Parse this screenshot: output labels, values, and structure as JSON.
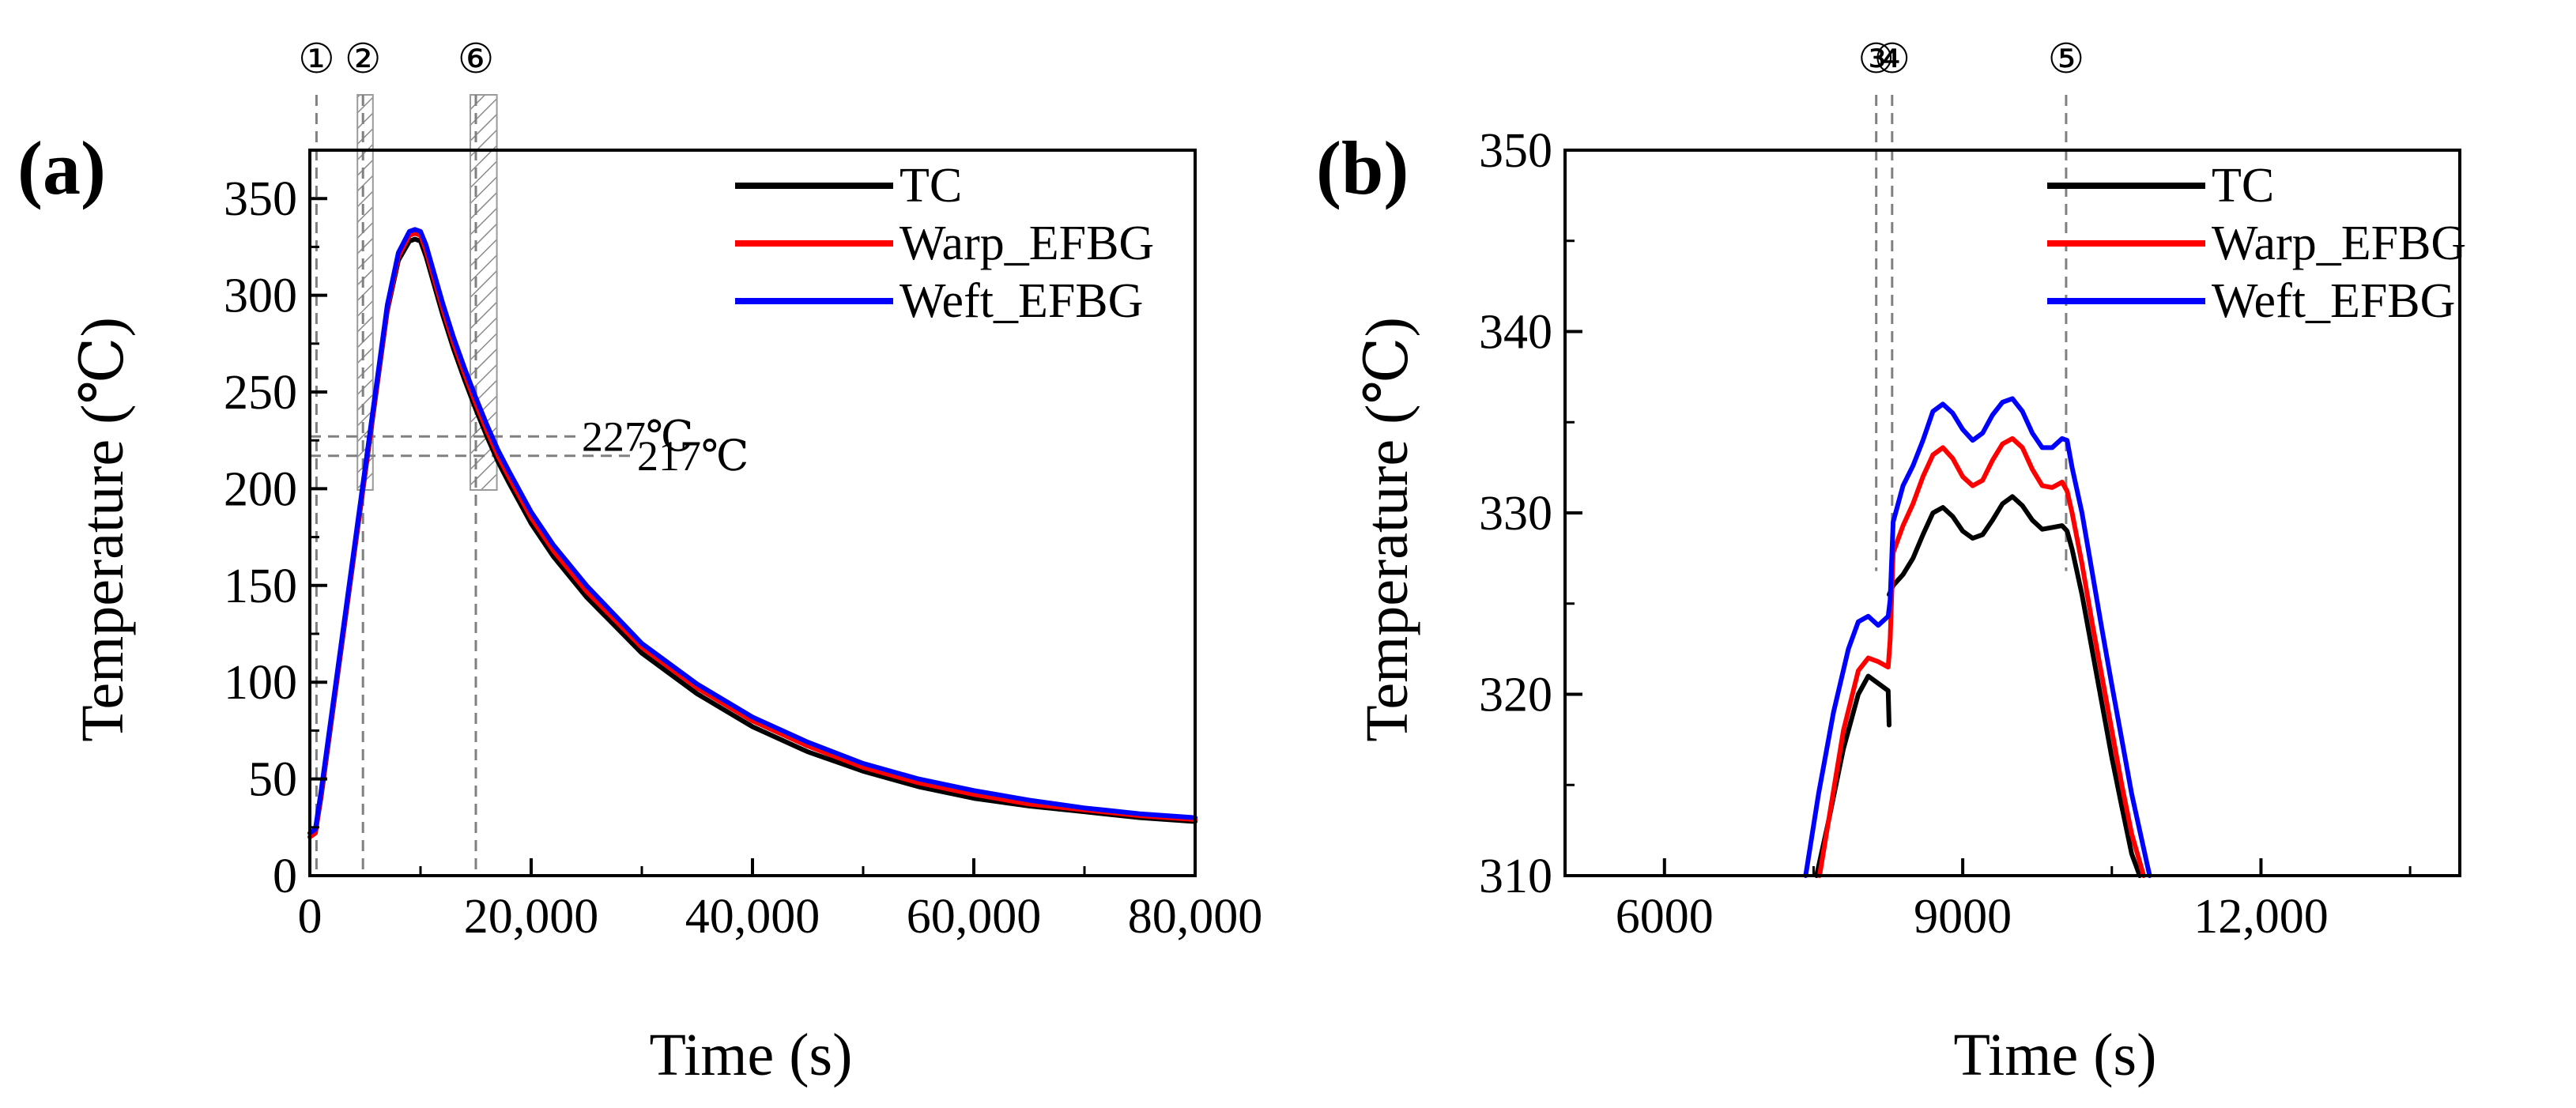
{
  "colors": {
    "TC": "#000000",
    "Warp_EFBG": "#ff0000",
    "Weft_EFBG": "#0000ff",
    "guide": "#808080"
  },
  "chart_data": [
    {
      "id": "a",
      "type": "line",
      "panel_label": "(a)",
      "title": "",
      "xlabel": "Time (s)",
      "ylabel": "Temperature (℃)",
      "xlim": [
        0,
        80000
      ],
      "ylim": [
        0,
        375
      ],
      "xticks": [
        0,
        20000,
        40000,
        60000,
        80000
      ],
      "xtick_labels": [
        "0",
        "20,000",
        "40,000",
        "60,000",
        "80,000"
      ],
      "yticks": [
        0,
        50,
        100,
        150,
        200,
        250,
        300,
        350
      ],
      "ytick_labels": [
        "0",
        "50",
        "100",
        "150",
        "200",
        "250",
        "300",
        "350"
      ],
      "legend": [
        "TC",
        "Warp_EFBG",
        "Weft_EFBG"
      ],
      "legend_position": "top-right",
      "series": [
        {
          "name": "TC",
          "x": [
            0,
            500,
            1000,
            2000,
            3000,
            4000,
            5000,
            6000,
            7000,
            8000,
            9000,
            9500,
            10000,
            10500,
            11000,
            12000,
            13000,
            14000,
            15000,
            16000,
            17000,
            18000,
            20000,
            22000,
            25000,
            30000,
            35000,
            40000,
            45000,
            50000,
            55000,
            60000,
            65000,
            70000,
            75000,
            80000
          ],
          "y": [
            20,
            22,
            40,
            82,
            124,
            166,
            208,
            250,
            292,
            318,
            328,
            329,
            328,
            320,
            310,
            290,
            272,
            256,
            241,
            227,
            214,
            203,
            182,
            165,
            144,
            115,
            94,
            77,
            64,
            54,
            46,
            40,
            36,
            33,
            30,
            28
          ]
        },
        {
          "name": "Warp_EFBG",
          "x": [
            0,
            500,
            1000,
            2000,
            3000,
            4000,
            5000,
            6000,
            7000,
            8000,
            9000,
            9500,
            10000,
            10500,
            11000,
            12000,
            13000,
            14000,
            15000,
            16000,
            17000,
            18000,
            20000,
            22000,
            25000,
            30000,
            35000,
            40000,
            45000,
            50000,
            55000,
            60000,
            65000,
            70000,
            75000,
            80000
          ],
          "y": [
            20,
            22,
            41,
            83,
            125,
            167,
            209,
            251,
            293,
            320,
            331,
            332,
            331,
            323,
            313,
            293,
            275,
            259,
            244,
            230,
            217,
            206,
            185,
            168,
            147,
            118,
            97,
            80,
            67,
            56,
            48,
            42,
            37,
            34,
            31,
            29
          ]
        },
        {
          "name": "Weft_EFBG",
          "x": [
            0,
            500,
            1000,
            2000,
            3000,
            4000,
            5000,
            6000,
            7000,
            8000,
            9000,
            9500,
            10000,
            10500,
            11000,
            12000,
            13000,
            14000,
            15000,
            16000,
            17000,
            18000,
            20000,
            22000,
            25000,
            30000,
            35000,
            40000,
            45000,
            50000,
            55000,
            60000,
            65000,
            70000,
            75000,
            80000
          ],
          "y": [
            22,
            24,
            43,
            85,
            127,
            169,
            211,
            253,
            295,
            322,
            333,
            334,
            333,
            326,
            316,
            296,
            278,
            262,
            247,
            233,
            220,
            209,
            188,
            171,
            150,
            120,
            99,
            82,
            69,
            58,
            50,
            44,
            39,
            35,
            32,
            30
          ]
        }
      ],
      "reference_lines": [
        {
          "label": "227℃",
          "y": 227,
          "x_from": 0,
          "x_to": 24000
        },
        {
          "label": "217℃",
          "y": 217,
          "x_from": 0,
          "x_to": 29000
        }
      ],
      "markers": [
        {
          "label": "①",
          "x": 600
        },
        {
          "label": "②",
          "x": 4800
        },
        {
          "label": "⑥",
          "x": 15000
        }
      ],
      "hatched_bands": [
        {
          "x_from": 4300,
          "x_to": 5700
        },
        {
          "x_from": 14500,
          "x_to": 16900
        }
      ]
    },
    {
      "id": "b",
      "type": "line",
      "panel_label": "(b)",
      "title": "",
      "xlabel": "Time (s)",
      "ylabel": "Temperature (℃)",
      "xlim": [
        5000,
        14000
      ],
      "ylim": [
        310,
        350
      ],
      "xticks": [
        6000,
        9000,
        12000
      ],
      "xtick_labels": [
        "6000",
        "9000",
        "12,000"
      ],
      "yticks": [
        310,
        320,
        330,
        340,
        350
      ],
      "ytick_labels": [
        "310",
        "320",
        "330",
        "340",
        "350"
      ],
      "legend": [
        "TC",
        "Warp_EFBG",
        "Weft_EFBG"
      ],
      "legend_position": "top-right",
      "series": [
        {
          "name": "TC",
          "segments": [
            {
              "x": [
                7530,
                7650,
                7800,
                7950,
                8050,
                8150,
                8250,
                8260
              ],
              "y": [
                310,
                313,
                317,
                320,
                321,
                320.6,
                320.2,
                318.3
              ]
            },
            {
              "x": [
                8260,
                8300,
                8400,
                8500,
                8600,
                8700,
                8800,
                8900,
                9000,
                9100,
                9200,
                9300,
                9400,
                9500,
                9600,
                9700,
                9800,
                9900,
                10000,
                10050,
                10100,
                10200,
                10300,
                10400,
                10500,
                10600,
                10700,
                10780
              ],
              "y": [
                325.5,
                326,
                326.6,
                327.5,
                328.8,
                330,
                330.3,
                329.8,
                329,
                328.6,
                328.8,
                329.6,
                330.5,
                330.9,
                330.4,
                329.6,
                329.1,
                329.2,
                329.3,
                329,
                328,
                325.5,
                322.5,
                319.5,
                316.5,
                313.8,
                311.2,
                310
              ]
            }
          ]
        },
        {
          "name": "Warp_EFBG",
          "x": [
            7560,
            7650,
            7800,
            7950,
            8050,
            8150,
            8250,
            8270,
            8300,
            8400,
            8500,
            8600,
            8700,
            8800,
            8900,
            9000,
            9100,
            9200,
            9300,
            9400,
            9500,
            9600,
            9700,
            9800,
            9900,
            10000,
            10050,
            10100,
            10200,
            10300,
            10400,
            10500,
            10600,
            10700,
            10820
          ],
          "y": [
            310,
            313,
            318,
            321.3,
            322,
            321.8,
            321.5,
            323,
            327.8,
            329.3,
            330.5,
            332,
            333.2,
            333.6,
            333,
            332,
            331.5,
            331.8,
            332.9,
            333.8,
            334.1,
            333.6,
            332.4,
            331.5,
            331.4,
            331.7,
            331.2,
            330,
            327.2,
            324,
            321,
            318,
            315,
            312.3,
            310
          ]
        },
        {
          "name": "Weft_EFBG",
          "x": [
            7420,
            7550,
            7700,
            7850,
            7950,
            8050,
            8150,
            8250,
            8270,
            8300,
            8400,
            8500,
            8600,
            8700,
            8800,
            8900,
            9000,
            9100,
            9200,
            9300,
            9400,
            9500,
            9600,
            9700,
            9800,
            9900,
            10000,
            10050,
            10100,
            10200,
            10300,
            10400,
            10500,
            10600,
            10700,
            10880
          ],
          "y": [
            310,
            314.5,
            319,
            322.5,
            324,
            324.3,
            323.8,
            324.3,
            325.2,
            329.5,
            331.5,
            332.6,
            334,
            335.6,
            336,
            335.5,
            334.6,
            334,
            334.4,
            335.4,
            336.1,
            336.3,
            335.6,
            334.4,
            333.6,
            333.6,
            334.1,
            334,
            332.5,
            330,
            326.8,
            323.6,
            320.5,
            317.5,
            314.5,
            310
          ]
        }
      ],
      "markers": [
        {
          "label": "③",
          "x": 8130
        },
        {
          "label": "④",
          "x": 8290
        },
        {
          "label": "⑤",
          "x": 10040
        }
      ]
    }
  ]
}
